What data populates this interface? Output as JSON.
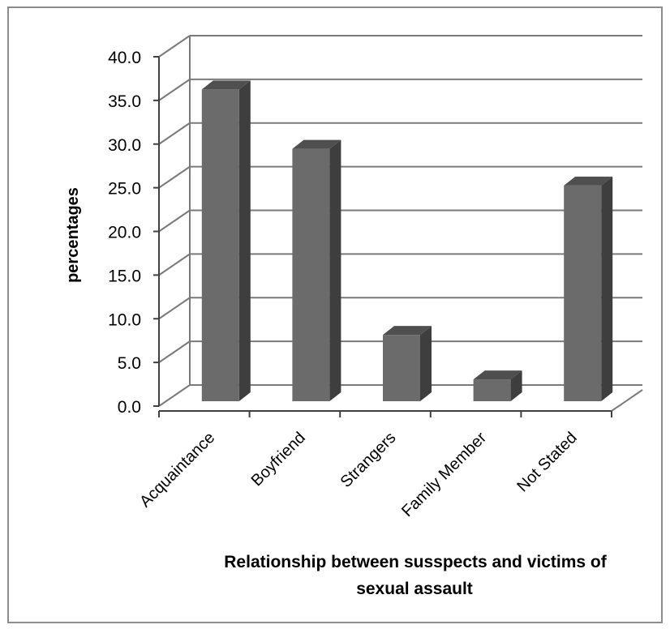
{
  "chart_data": {
    "type": "bar",
    "title": "",
    "categories": [
      "Acquaintance",
      "Boyfriend",
      "Strangers",
      "Family Member",
      "Not Stated"
    ],
    "values": [
      35.7,
      28.9,
      7.6,
      2.5,
      24.7
    ],
    "ylabel": "percentages",
    "xlabel_lines": [
      "Relationship between susspects and victims of",
      "sexual assault"
    ],
    "ylim": [
      0,
      40
    ],
    "yticks": [
      "0.0",
      "5.0",
      "10.0",
      "15.0",
      "20.0",
      "25.0",
      "30.0",
      "35.0",
      "40.0"
    ],
    "grid": true,
    "legend": "none",
    "colors": {
      "bar_front": "#6b6b6b",
      "bar_side": "#3e3e3e",
      "bar_top": "#4f4f4f",
      "grid": "#7a7a7a",
      "frame": "#8c8c8c"
    }
  }
}
